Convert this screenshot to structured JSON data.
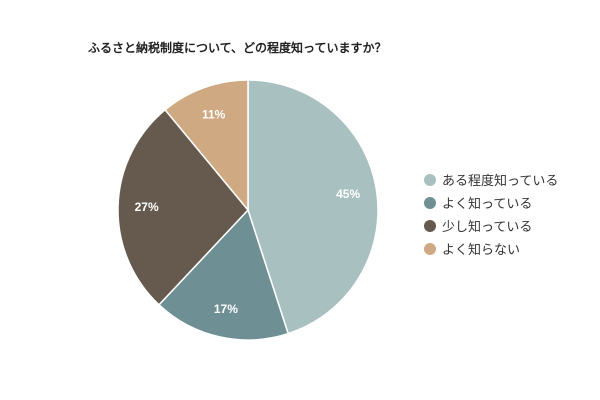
{
  "chart_data": {
    "type": "pie",
    "title": "ふるさと納税制度について、どの程度知っていますか？",
    "categories": [
      "ある程度知っている",
      "よく知っている",
      "少し知っている",
      "よく知らない"
    ],
    "values": [
      45,
      17,
      27,
      11
    ],
    "labels": [
      "45%",
      "17%",
      "27%",
      "11%"
    ],
    "colors": [
      "#a9c0c1",
      "#6e9095",
      "#66594e",
      "#cfa982"
    ],
    "legend_position": "right"
  }
}
